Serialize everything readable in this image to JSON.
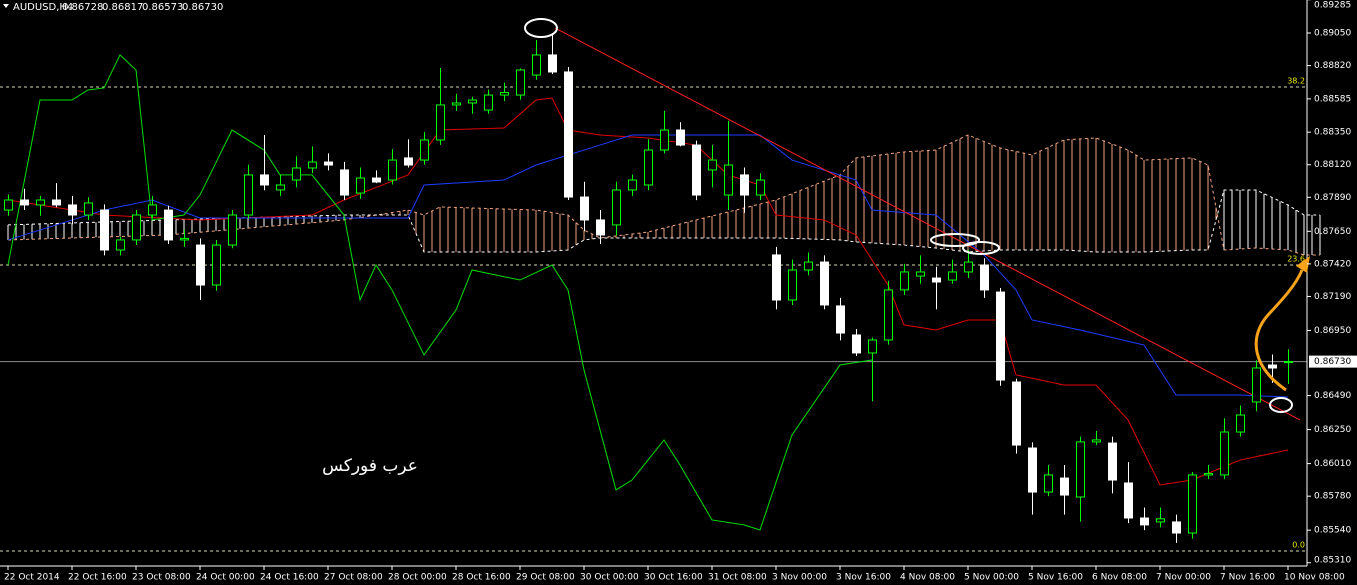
{
  "chart_data": {
    "type": "candlestick",
    "title": "AUDUSD,H4",
    "header_labels": [
      "0.86728",
      "0.86817",
      "0.86573",
      "0.86730"
    ],
    "annotation": "عرب فوركس",
    "up_color": "#00ff00",
    "down_color": "#ffffff",
    "ylim": [
      0.85287,
      0.89283
    ],
    "yticks": [
      {
        "value": 0.89285,
        "label": "0.89285"
      },
      {
        "value": 0.8905,
        "label": "0.89050"
      },
      {
        "value": 0.8882,
        "label": "0.88820"
      },
      {
        "value": 0.88585,
        "label": "0.88585"
      },
      {
        "value": 0.8835,
        "label": "0.88350"
      },
      {
        "value": 0.8812,
        "label": "0.88120"
      },
      {
        "value": 0.8789,
        "label": "0.87890"
      },
      {
        "value": 0.8765,
        "label": "0.87650"
      },
      {
        "value": 0.8742,
        "label": "0.87420"
      },
      {
        "value": 0.8719,
        "label": "0.87190"
      },
      {
        "value": 0.8695,
        "label": "0.86950"
      },
      {
        "value": 0.8649,
        "label": "0.86490"
      },
      {
        "value": 0.8625,
        "label": "0.86250"
      },
      {
        "value": 0.8601,
        "label": "0.86010"
      },
      {
        "value": 0.8578,
        "label": "0.85780"
      },
      {
        "value": 0.8554,
        "label": "0.85540"
      },
      {
        "value": 0.8531,
        "label": "0.85310"
      }
    ],
    "bid": {
      "value": 0.8673,
      "label": "0.86730"
    },
    "fib_levels": [
      {
        "value": 0.88669,
        "label": "38.2"
      },
      {
        "value": 0.87412,
        "label": "23.6"
      },
      {
        "value": 0.85393,
        "label": "0.0"
      }
    ],
    "categories": [
      "22 Oct 2014",
      null,
      null,
      null,
      "22 Oct 16:00",
      null,
      null,
      null,
      "23 Oct 08:00",
      null,
      null,
      null,
      "24 Oct 00:00",
      null,
      null,
      null,
      "24 Oct 16:00",
      null,
      null,
      null,
      "27 Oct 08:00",
      null,
      null,
      null,
      "28 Oct 00:00",
      null,
      null,
      null,
      "28 Oct 16:00",
      null,
      null,
      null,
      "29 Oct 08:00",
      null,
      null,
      null,
      "30 Oct 00:00",
      null,
      null,
      null,
      "30 Oct 16:00",
      null,
      null,
      null,
      "31 Oct 08:00",
      null,
      null,
      null,
      "3 Nov 00:00",
      null,
      null,
      null,
      "3 Nov 16:00",
      null,
      null,
      null,
      "4 Nov 08:00",
      null,
      null,
      null,
      "5 Nov 00:00",
      null,
      null,
      null,
      "5 Nov 16:00",
      null,
      null,
      null,
      "6 Nov 08:00",
      null,
      null,
      null,
      "7 Nov 00:00",
      null,
      null,
      null,
      "7 Nov 16:00",
      null,
      null,
      null,
      "10 Nov 08:00"
    ],
    "candles": [
      [
        0.878,
        0.8791,
        0.8776,
        0.87871
      ],
      [
        0.87871,
        0.8795,
        0.878,
        0.87836
      ],
      [
        0.87836,
        0.879,
        0.8776,
        0.87871
      ],
      [
        0.87871,
        0.8799,
        0.8782,
        0.87836
      ],
      [
        0.87836,
        0.879,
        0.877,
        0.87765
      ],
      [
        0.87765,
        0.8789,
        0.8773,
        0.8785
      ],
      [
        0.878,
        0.8784,
        0.8748,
        0.87518
      ],
      [
        0.87518,
        0.8761,
        0.8748,
        0.87589
      ],
      [
        0.87589,
        0.878,
        0.87553,
        0.87765
      ],
      [
        0.87765,
        0.879,
        0.8774,
        0.87836
      ],
      [
        0.878,
        0.8783,
        0.8756,
        0.87589
      ],
      [
        0.87589,
        0.8766,
        0.8754,
        0.876
      ],
      [
        0.87553,
        0.876,
        0.87165,
        0.87271
      ],
      [
        0.87271,
        0.87589,
        0.8723,
        0.87553
      ],
      [
        0.87553,
        0.878,
        0.8753,
        0.87765
      ],
      [
        0.87765,
        0.8812,
        0.8774,
        0.88048
      ],
      [
        0.88048,
        0.8833,
        0.8794,
        0.87977
      ],
      [
        0.87942,
        0.8805,
        0.879,
        0.87977
      ],
      [
        0.88012,
        0.8818,
        0.8796,
        0.88097
      ],
      [
        0.88097,
        0.8825,
        0.8806,
        0.88139
      ],
      [
        0.88139,
        0.882,
        0.8808,
        0.88118
      ],
      [
        0.88083,
        0.8814,
        0.8787,
        0.87906
      ],
      [
        0.8792,
        0.881,
        0.8788,
        0.88026
      ],
      [
        0.88026,
        0.8808,
        0.8799,
        0.87998
      ],
      [
        0.88012,
        0.8823,
        0.8798,
        0.88153
      ],
      [
        0.88168,
        0.883,
        0.881,
        0.88118
      ],
      [
        0.88153,
        0.8835,
        0.8812,
        0.88295
      ],
      [
        0.88295,
        0.88803,
        0.8826,
        0.88542
      ],
      [
        0.88542,
        0.8862,
        0.885,
        0.88556
      ],
      [
        0.88556,
        0.886,
        0.8848,
        0.88577
      ],
      [
        0.88506,
        0.8865,
        0.8848,
        0.88612
      ],
      [
        0.88612,
        0.887,
        0.8857,
        0.8863
      ],
      [
        0.88612,
        0.888,
        0.8858,
        0.88789
      ],
      [
        0.88753,
        0.89001,
        0.8872,
        0.88895
      ],
      [
        0.88895,
        0.8905,
        0.8876,
        0.88775
      ],
      [
        0.88775,
        0.8881,
        0.87871,
        0.87892
      ],
      [
        0.87892,
        0.88,
        0.8765,
        0.8773
      ],
      [
        0.8773,
        0.878,
        0.8756,
        0.87624
      ],
      [
        0.87695,
        0.88,
        0.8762,
        0.87942
      ],
      [
        0.87942,
        0.8805,
        0.879,
        0.88012
      ],
      [
        0.87977,
        0.883,
        0.8794,
        0.88224
      ],
      [
        0.88224,
        0.885,
        0.882,
        0.88365
      ],
      [
        0.88365,
        0.8842,
        0.8825,
        0.88259
      ],
      [
        0.88259,
        0.8829,
        0.8787,
        0.87906
      ],
      [
        0.88083,
        0.8826,
        0.8796,
        0.88153
      ],
      [
        0.87906,
        0.8843,
        0.878,
        0.88118
      ],
      [
        0.88048,
        0.881,
        0.8778,
        0.87906
      ],
      [
        0.87906,
        0.8806,
        0.8787,
        0.88012
      ],
      [
        0.87483,
        0.8754,
        0.871,
        0.87165
      ],
      [
        0.87165,
        0.8745,
        0.8713,
        0.87377
      ],
      [
        0.87377,
        0.875,
        0.8734,
        0.87433
      ],
      [
        0.87433,
        0.8748,
        0.871,
        0.8713
      ],
      [
        0.87123,
        0.8718,
        0.8688,
        0.86932
      ],
      [
        0.86918,
        0.8696,
        0.8677,
        0.86791
      ],
      [
        0.86791,
        0.869,
        0.8645,
        0.86883
      ],
      [
        0.86883,
        0.873,
        0.8685,
        0.87236
      ],
      [
        0.87236,
        0.8742,
        0.872,
        0.87363
      ],
      [
        0.87334,
        0.8748,
        0.8728,
        0.87363
      ],
      [
        0.8732,
        0.874,
        0.871,
        0.87292
      ],
      [
        0.87306,
        0.8745,
        0.8728,
        0.87363
      ],
      [
        0.87363,
        0.8752,
        0.8732,
        0.87433
      ],
      [
        0.87412,
        0.8746,
        0.8718,
        0.87236
      ],
      [
        0.87221,
        0.8725,
        0.8656,
        0.866
      ],
      [
        0.86586,
        0.8661,
        0.8608,
        0.86141
      ],
      [
        0.8612,
        0.8616,
        0.8565,
        0.85809
      ],
      [
        0.85809,
        0.86,
        0.8578,
        0.8593
      ],
      [
        0.85908,
        0.86,
        0.8565,
        0.85788
      ],
      [
        0.85774,
        0.862,
        0.856,
        0.86163
      ],
      [
        0.86163,
        0.8624,
        0.8614,
        0.86177
      ],
      [
        0.86155,
        0.862,
        0.858,
        0.85894
      ],
      [
        0.85873,
        0.8602,
        0.8559,
        0.85626
      ],
      [
        0.85626,
        0.857,
        0.8554,
        0.85577
      ],
      [
        0.85598,
        0.857,
        0.8556,
        0.8562
      ],
      [
        0.85598,
        0.8565,
        0.8545,
        0.8552
      ],
      [
        0.8552,
        0.8595,
        0.8548,
        0.8593
      ],
      [
        0.8593,
        0.86,
        0.859,
        0.8594
      ],
      [
        0.8593,
        0.8633,
        0.859,
        0.86233
      ],
      [
        0.86233,
        0.8642,
        0.862,
        0.86353
      ],
      [
        0.86445,
        0.8674,
        0.8638,
        0.86685
      ],
      [
        0.86706,
        0.8678,
        0.8658,
        0.86685
      ],
      [
        0.86728,
        0.86817,
        0.86573,
        0.8673
      ]
    ],
    "lines": [
      {
        "color": "#e00000",
        "x": [
          0,
          6,
          12,
          19,
          21,
          25,
          27,
          31,
          33,
          34,
          35,
          37,
          40,
          43,
          45,
          47,
          48,
          51,
          53,
          55,
          56,
          58,
          60,
          62,
          63,
          66,
          68,
          70,
          72,
          74,
          77,
          80
        ],
        "values": [
          0.87871,
          0.87765,
          0.8773,
          0.87765,
          0.87871,
          0.88048,
          0.88365,
          0.88379,
          0.88577,
          0.88591,
          0.88365,
          0.8833,
          0.88309,
          0.88259,
          0.88048,
          0.87977,
          0.87765,
          0.8773,
          0.87624,
          0.87271,
          0.86989,
          0.86953,
          0.87024,
          0.87024,
          0.86636,
          0.86565,
          0.86565,
          0.86318,
          0.85859,
          0.85894,
          0.86035,
          0.86106
        ]
      },
      {
        "color": "#1e3cff",
        "x": [
          0,
          6,
          9,
          12,
          21,
          25,
          26,
          31,
          33,
          37,
          39,
          47,
          49,
          53,
          54,
          58,
          61,
          63,
          64,
          67,
          71,
          73,
          77,
          80
        ],
        "values": [
          0.87589,
          0.878,
          0.87871,
          0.87744,
          0.87744,
          0.87744,
          0.87977,
          0.88012,
          0.88118,
          0.88259,
          0.8833,
          0.8833,
          0.88153,
          0.88012,
          0.878,
          0.87765,
          0.87483,
          0.87236,
          0.87024,
          0.86953,
          0.86847,
          0.86494,
          0.86494,
          0.8648
        ]
      },
      {
        "color": "#00e000",
        "x": [
          0,
          2,
          4,
          5,
          6,
          7,
          8,
          9,
          11,
          12,
          14,
          16,
          17,
          19,
          21,
          22,
          23,
          24,
          26,
          28,
          29,
          32,
          34,
          35,
          36,
          38,
          39,
          41,
          42,
          44,
          46,
          47,
          49,
          52,
          54
        ],
        "values": [
          0.87412,
          0.88577,
          0.88577,
          0.88648,
          0.88662,
          0.88895,
          0.88789,
          0.8773,
          0.87765,
          0.87906,
          0.88365,
          0.88224,
          0.88048,
          0.88048,
          0.87765,
          0.87165,
          0.87412,
          0.87236,
          0.86777,
          0.87094,
          0.87377,
          0.87306,
          0.87412,
          0.87236,
          0.86671,
          0.85824,
          0.85894,
          0.86177,
          0.86,
          0.85612,
          0.85577,
          0.85541,
          0.86212,
          0.86706,
          0.86741
        ]
      }
    ],
    "cloud": {
      "colors": [
        "#f4a582",
        "#ffffff"
      ],
      "x": [
        0,
        10,
        21,
        25,
        26,
        27,
        33,
        35,
        36,
        37,
        40,
        48,
        52,
        53,
        56,
        58,
        60,
        62,
        64,
        66,
        68,
        70,
        71,
        74,
        75,
        76,
        78,
        80,
        81,
        82
      ],
      "span_a": [
        0.87589,
        0.87624,
        0.8773,
        0.878,
        0.87765,
        0.87822,
        0.878,
        0.87765,
        0.87659,
        0.87603,
        0.87645,
        0.87871,
        0.88048,
        0.88168,
        0.8821,
        0.88224,
        0.8833,
        0.88238,
        0.88189,
        0.88295,
        0.88309,
        0.88224,
        0.88153,
        0.88168,
        0.88118,
        0.87518,
        0.87532,
        0.87518,
        0.87483,
        0.87483
      ],
      "span_b": [
        0.87695,
        0.8773,
        0.87765,
        0.87765,
        0.87504,
        0.87504,
        0.87504,
        0.87518,
        0.87589,
        0.87603,
        0.87603,
        0.87603,
        0.87589,
        0.87575,
        0.87553,
        0.87532,
        0.87504,
        0.87518,
        0.87518,
        0.87518,
        0.87504,
        0.87504,
        0.87504,
        0.87518,
        0.87518,
        0.87942,
        0.87942,
        0.87836,
        0.87765,
        0.87765
      ]
    },
    "trendline": {
      "color": "#ff2020",
      "x": [
        34.2,
        80.75
      ],
      "values": [
        0.89085,
        0.86318
      ]
    }
  }
}
